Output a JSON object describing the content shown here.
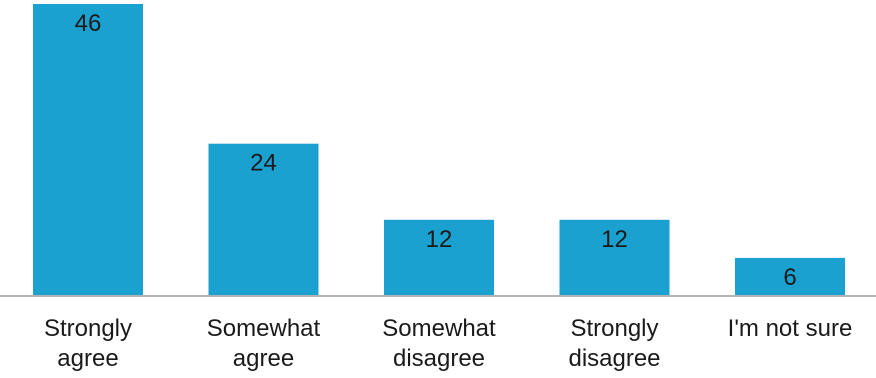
{
  "chart_data": {
    "type": "bar",
    "categories": [
      [
        "Strongly",
        "agree"
      ],
      [
        "Somewhat",
        "agree"
      ],
      [
        "Somewhat",
        "disagree"
      ],
      [
        "Strongly",
        "disagree"
      ],
      [
        "I'm not sure"
      ]
    ],
    "values": [
      46,
      24,
      12,
      12,
      6
    ],
    "data_labels": [
      "46",
      "24",
      "12",
      "12",
      "6"
    ],
    "title": "",
    "xlabel": "",
    "ylabel": "",
    "ylim": [
      0,
      46
    ],
    "grid": false,
    "legend": "none",
    "colors": {
      "bar": "#1ba1d0",
      "axis": "#b3b3b3"
    }
  }
}
